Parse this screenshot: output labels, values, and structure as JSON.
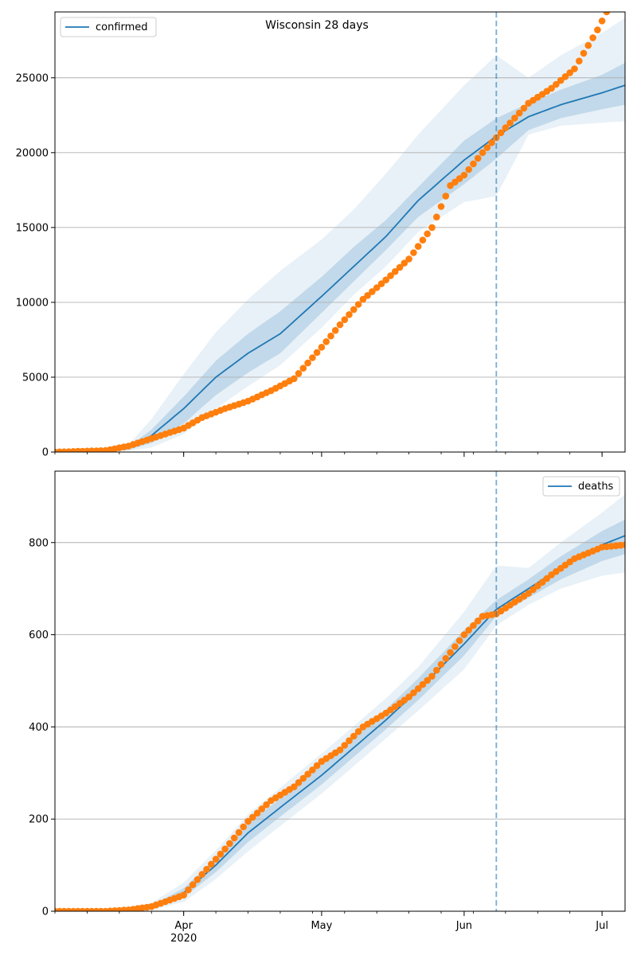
{
  "figure_title": "Wisconsin 28 days",
  "colors": {
    "model_line": "#1f77b4",
    "observed_points": "#ff7f0e",
    "band": "#1f77b4",
    "forecast_divider": "#1f77b4",
    "grid": "#b0b0b0",
    "axes": "#000000"
  },
  "chart_data": [
    {
      "type": "line",
      "title": "Wisconsin 28 days",
      "legend": {
        "entries": [
          "confirmed"
        ],
        "position": "top-left"
      },
      "xlabel": "",
      "ylabel": "",
      "x_range": [
        "2020-03-04",
        "2020-07-06"
      ],
      "ylim": [
        0,
        29400
      ],
      "y_ticks": [
        0,
        5000,
        10000,
        15000,
        20000,
        25000
      ],
      "y_tick_labels": [
        "0",
        "5000",
        "10000",
        "15000",
        "20000",
        "25000"
      ],
      "grid": "horizontal",
      "forecast_start": "2020-06-08",
      "model_series": {
        "name": "confirmed",
        "x": [
          "2020-03-04",
          "2020-03-15",
          "2020-03-20",
          "2020-03-25",
          "2020-04-01",
          "2020-04-08",
          "2020-04-15",
          "2020-04-22",
          "2020-05-01",
          "2020-05-08",
          "2020-05-15",
          "2020-05-22",
          "2020-06-01",
          "2020-06-08",
          "2020-06-15",
          "2020-06-22",
          "2020-07-01",
          "2020-07-06"
        ],
        "values": [
          0,
          60,
          250,
          1100,
          2900,
          5000,
          6600,
          7900,
          10400,
          12400,
          14400,
          16800,
          19500,
          21100,
          22400,
          23200,
          24000,
          24500
        ],
        "band_inner_low": [
          0,
          40,
          150,
          600,
          1900,
          3800,
          5300,
          6600,
          9300,
          11400,
          13500,
          15700,
          17900,
          19600,
          21500,
          22300,
          22900,
          23200
        ],
        "band_inner_high": [
          0,
          90,
          350,
          1500,
          3700,
          6100,
          7900,
          9400,
          11700,
          13700,
          15500,
          17700,
          20800,
          22300,
          23300,
          24200,
          25200,
          26000
        ],
        "band_outer_low": [
          0,
          20,
          80,
          300,
          1200,
          2900,
          4400,
          5800,
          8300,
          10500,
          12400,
          14700,
          16700,
          17100,
          21200,
          21800,
          22000,
          22100
        ],
        "band_outer_high": [
          0,
          140,
          500,
          2200,
          5200,
          8000,
          10200,
          12100,
          14200,
          16200,
          18600,
          21200,
          24500,
          26500,
          25000,
          26500,
          28000,
          29000
        ]
      },
      "observed_series": {
        "x": [
          "2020-03-04",
          "2020-03-15",
          "2020-03-20",
          "2020-03-25",
          "2020-04-01",
          "2020-04-05",
          "2020-04-10",
          "2020-04-15",
          "2020-04-20",
          "2020-04-25",
          "2020-05-01",
          "2020-05-05",
          "2020-05-10",
          "2020-05-15",
          "2020-05-20",
          "2020-05-25",
          "2020-05-29",
          "2020-06-01",
          "2020-06-05",
          "2020-06-08",
          "2020-06-15",
          "2020-06-20",
          "2020-06-25",
          "2020-06-30",
          "2020-07-02"
        ],
        "values": [
          0,
          100,
          400,
          900,
          1600,
          2300,
          2900,
          3400,
          4100,
          4900,
          7000,
          8500,
          10200,
          11500,
          12900,
          15000,
          17800,
          18500,
          20000,
          21000,
          23300,
          24300,
          25600,
          28200,
          29400
        ]
      }
    },
    {
      "type": "line",
      "legend": {
        "entries": [
          "deaths"
        ],
        "position": "top-right"
      },
      "xlabel": "",
      "ylabel": "",
      "x_range": [
        "2020-03-04",
        "2020-07-06"
      ],
      "ylim": [
        0,
        955
      ],
      "y_ticks": [
        0,
        200,
        400,
        600,
        800
      ],
      "y_tick_labels": [
        "0",
        "200",
        "400",
        "600",
        "800"
      ],
      "x_tick_labels": [
        "Apr",
        "May",
        "Jun",
        "Jul"
      ],
      "x_tick_dates": [
        "2020-04-01",
        "2020-05-01",
        "2020-06-01",
        "2020-07-01"
      ],
      "x_sub_label": "2020",
      "grid": "horizontal",
      "forecast_start": "2020-06-08",
      "model_series": {
        "name": "deaths",
        "x": [
          "2020-03-04",
          "2020-03-20",
          "2020-03-25",
          "2020-04-01",
          "2020-04-08",
          "2020-04-15",
          "2020-04-22",
          "2020-05-01",
          "2020-05-08",
          "2020-05-15",
          "2020-05-22",
          "2020-06-01",
          "2020-06-08",
          "2020-06-15",
          "2020-06-22",
          "2020-07-01",
          "2020-07-06"
        ],
        "values": [
          0,
          2,
          8,
          40,
          100,
          170,
          225,
          295,
          355,
          415,
          480,
          580,
          655,
          700,
          745,
          795,
          815
        ],
        "band_inner_low": [
          0,
          1,
          5,
          30,
          85,
          150,
          205,
          275,
          335,
          395,
          458,
          555,
          640,
          680,
          720,
          760,
          775
        ],
        "band_inner_high": [
          0,
          3,
          12,
          50,
          115,
          190,
          245,
          318,
          378,
          438,
          505,
          610,
          675,
          720,
          770,
          825,
          850
        ],
        "band_outer_low": [
          0,
          0,
          3,
          20,
          70,
          130,
          185,
          255,
          315,
          375,
          435,
          525,
          620,
          665,
          700,
          728,
          735
        ],
        "band_outer_high": [
          0,
          5,
          18,
          62,
          132,
          210,
          268,
          342,
          402,
          462,
          530,
          650,
          750,
          745,
          800,
          865,
          905
        ]
      },
      "observed_series": {
        "x": [
          "2020-03-04",
          "2020-03-15",
          "2020-03-20",
          "2020-03-25",
          "2020-04-01",
          "2020-04-05",
          "2020-04-10",
          "2020-04-15",
          "2020-04-20",
          "2020-04-25",
          "2020-05-01",
          "2020-05-05",
          "2020-05-10",
          "2020-05-15",
          "2020-05-20",
          "2020-05-25",
          "2020-06-01",
          "2020-06-05",
          "2020-06-08",
          "2020-06-15",
          "2020-06-20",
          "2020-06-25",
          "2020-07-01",
          "2020-07-06"
        ],
        "values": [
          0,
          0,
          3,
          10,
          35,
          80,
          135,
          195,
          240,
          270,
          325,
          350,
          400,
          430,
          465,
          510,
          600,
          640,
          645,
          690,
          730,
          765,
          790,
          795
        ]
      }
    }
  ]
}
